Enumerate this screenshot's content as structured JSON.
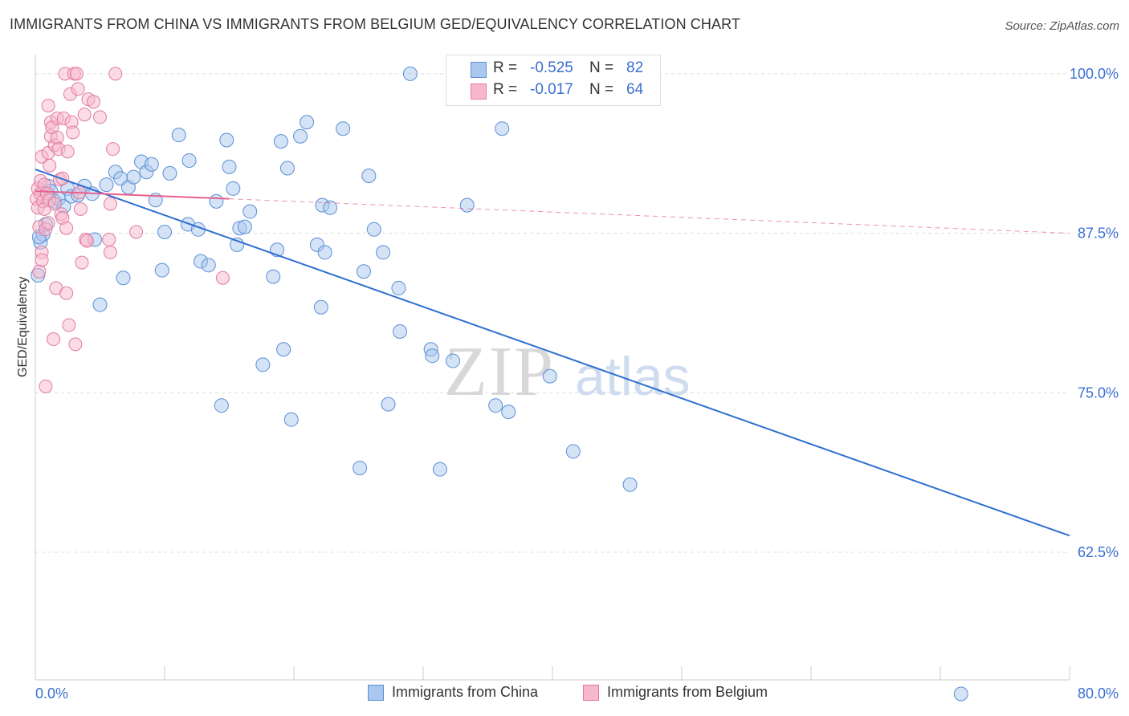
{
  "title": "IMMIGRANTS FROM CHINA VS IMMIGRANTS FROM BELGIUM GED/EQUIVALENCY CORRELATION CHART",
  "source": "Source: ZipAtlas.com",
  "watermark": {
    "zip": "ZIP",
    "atlas": "atlas"
  },
  "legend": {
    "china": {
      "r_label": "R =",
      "r_value": "-0.525",
      "n_label": "N =",
      "n_value": "82"
    },
    "belgium": {
      "r_label": "R =",
      "r_value": "-0.017",
      "n_label": "N =",
      "n_value": "64"
    }
  },
  "colors": {
    "china_fill": "#aac8ee",
    "china_stroke": "#5b8fd6",
    "china_line": "#2f6fd0",
    "belgium_fill": "#f7b8cc",
    "belgium_stroke": "#e07aa0",
    "belgium_line": "#e8608e",
    "axis_label": "#3a6fd0",
    "grid": "#dddddd"
  },
  "chart_data": {
    "type": "scatter",
    "title": "IMMIGRANTS FROM CHINA VS IMMIGRANTS FROM BELGIUM GED/EQUIVALENCY CORRELATION CHART",
    "xlabel": "",
    "ylabel": "GED/Equivalency",
    "xlim": [
      0,
      80
    ],
    "ylim": [
      52.5,
      101.5
    ],
    "x_tick_labels": [
      "0.0%",
      "80.0%"
    ],
    "y_ticks": [
      62.5,
      75.0,
      87.5,
      100.0
    ],
    "y_tick_labels": [
      "62.5%",
      "75.0%",
      "87.5%",
      "100.0%"
    ],
    "grid": true,
    "legend_position": "top-center",
    "series": [
      {
        "name": "Immigrants from China",
        "points": [
          [
            0.2,
            84.2
          ],
          [
            0.4,
            86.8
          ],
          [
            0.6,
            87.4
          ],
          [
            0.8,
            88.2
          ],
          [
            1.0,
            91.2
          ],
          [
            1.2,
            90.8
          ],
          [
            1.5,
            90.0
          ],
          [
            1.8,
            90.2
          ],
          [
            2.2,
            89.6
          ],
          [
            2.5,
            91.0
          ],
          [
            2.8,
            90.4
          ],
          [
            3.3,
            90.5
          ],
          [
            3.8,
            91.2
          ],
          [
            4.4,
            90.6
          ],
          [
            4.6,
            87.0
          ],
          [
            5.0,
            81.9
          ],
          [
            5.5,
            91.3
          ],
          [
            6.2,
            92.3
          ],
          [
            6.6,
            91.8
          ],
          [
            6.8,
            84.0
          ],
          [
            7.2,
            91.1
          ],
          [
            7.6,
            91.9
          ],
          [
            8.2,
            93.1
          ],
          [
            8.6,
            92.3
          ],
          [
            9.0,
            92.9
          ],
          [
            9.3,
            90.1
          ],
          [
            9.8,
            84.6
          ],
          [
            10.0,
            87.6
          ],
          [
            10.4,
            92.2
          ],
          [
            11.1,
            95.2
          ],
          [
            11.8,
            88.2
          ],
          [
            11.9,
            93.2
          ],
          [
            12.6,
            87.8
          ],
          [
            12.8,
            85.3
          ],
          [
            13.4,
            85.0
          ],
          [
            14.0,
            90.0
          ],
          [
            14.4,
            74.0
          ],
          [
            14.8,
            94.8
          ],
          [
            15.0,
            92.7
          ],
          [
            15.3,
            91.0
          ],
          [
            15.6,
            86.6
          ],
          [
            15.8,
            87.9
          ],
          [
            16.2,
            88.0
          ],
          [
            16.6,
            89.2
          ],
          [
            17.6,
            77.2
          ],
          [
            18.4,
            84.1
          ],
          [
            18.7,
            86.2
          ],
          [
            19.0,
            94.7
          ],
          [
            19.2,
            78.4
          ],
          [
            19.5,
            92.6
          ],
          [
            19.8,
            72.9
          ],
          [
            20.5,
            95.1
          ],
          [
            21.0,
            96.2
          ],
          [
            21.8,
            86.6
          ],
          [
            22.1,
            81.7
          ],
          [
            22.2,
            89.7
          ],
          [
            22.4,
            86.0
          ],
          [
            22.8,
            89.5
          ],
          [
            23.8,
            95.7
          ],
          [
            25.1,
            69.1
          ],
          [
            25.4,
            84.5
          ],
          [
            25.8,
            92.0
          ],
          [
            26.2,
            87.8
          ],
          [
            26.9,
            86.0
          ],
          [
            27.3,
            74.1
          ],
          [
            28.1,
            83.2
          ],
          [
            28.2,
            79.8
          ],
          [
            29.0,
            100.0
          ],
          [
            30.6,
            78.4
          ],
          [
            30.7,
            77.9
          ],
          [
            31.3,
            69.0
          ],
          [
            32.3,
            77.5
          ],
          [
            32.8,
            100.0
          ],
          [
            33.4,
            89.7
          ],
          [
            35.6,
            74.0
          ],
          [
            36.1,
            95.7
          ],
          [
            36.6,
            73.5
          ],
          [
            39.8,
            76.3
          ],
          [
            41.6,
            70.4
          ],
          [
            46.0,
            67.8
          ],
          [
            71.6,
            51.4
          ],
          [
            0.3,
            87.2
          ]
        ]
      },
      {
        "name": "Immigrants from Belgium",
        "points": [
          [
            0.1,
            90.2
          ],
          [
            0.2,
            91.0
          ],
          [
            0.2,
            89.5
          ],
          [
            0.3,
            88.0
          ],
          [
            0.3,
            84.5
          ],
          [
            0.4,
            91.6
          ],
          [
            0.4,
            90.6
          ],
          [
            0.5,
            86.0
          ],
          [
            0.5,
            85.4
          ],
          [
            0.5,
            93.5
          ],
          [
            0.6,
            90.0
          ],
          [
            0.7,
            91.3
          ],
          [
            0.7,
            89.4
          ],
          [
            0.8,
            87.8
          ],
          [
            0.8,
            75.5
          ],
          [
            0.9,
            90.6
          ],
          [
            1.0,
            93.8
          ],
          [
            1.0,
            88.3
          ],
          [
            1.0,
            97.5
          ],
          [
            1.1,
            92.8
          ],
          [
            1.1,
            90.1
          ],
          [
            1.2,
            95.1
          ],
          [
            1.2,
            96.2
          ],
          [
            1.3,
            95.8
          ],
          [
            1.4,
            79.2
          ],
          [
            1.5,
            94.4
          ],
          [
            1.5,
            89.8
          ],
          [
            1.6,
            83.2
          ],
          [
            1.7,
            95.0
          ],
          [
            1.7,
            96.5
          ],
          [
            1.8,
            94.1
          ],
          [
            1.9,
            91.7
          ],
          [
            2.0,
            89.0
          ],
          [
            2.1,
            91.8
          ],
          [
            2.1,
            88.7
          ],
          [
            2.2,
            96.5
          ],
          [
            2.3,
            100.0
          ],
          [
            2.4,
            87.9
          ],
          [
            2.4,
            82.8
          ],
          [
            2.5,
            93.9
          ],
          [
            2.6,
            80.3
          ],
          [
            2.7,
            98.4
          ],
          [
            2.8,
            96.2
          ],
          [
            2.9,
            95.4
          ],
          [
            3.0,
            100.0
          ],
          [
            3.1,
            78.8
          ],
          [
            3.2,
            100.0
          ],
          [
            3.3,
            98.8
          ],
          [
            3.4,
            90.7
          ],
          [
            3.5,
            89.4
          ],
          [
            3.6,
            85.2
          ],
          [
            3.8,
            96.8
          ],
          [
            3.9,
            87.0
          ],
          [
            4.0,
            86.9
          ],
          [
            4.1,
            98.0
          ],
          [
            4.5,
            97.8
          ],
          [
            5.0,
            96.6
          ],
          [
            5.7,
            87.0
          ],
          [
            5.8,
            86.0
          ],
          [
            5.8,
            89.8
          ],
          [
            6.0,
            94.1
          ],
          [
            6.2,
            100.0
          ],
          [
            7.8,
            87.6
          ],
          [
            14.5,
            84.0
          ]
        ]
      }
    ],
    "trend_lines": [
      {
        "series": "Immigrants from China",
        "x": [
          0.0,
          80.0
        ],
        "y": [
          92.5,
          63.8
        ],
        "style": "solid"
      },
      {
        "series": "Immigrants from Belgium",
        "x": [
          0.0,
          15.0
        ],
        "y": [
          90.8,
          90.2
        ],
        "style": "solid",
        "dashed_extension_to": [
          80.0,
          87.5
        ]
      }
    ]
  }
}
